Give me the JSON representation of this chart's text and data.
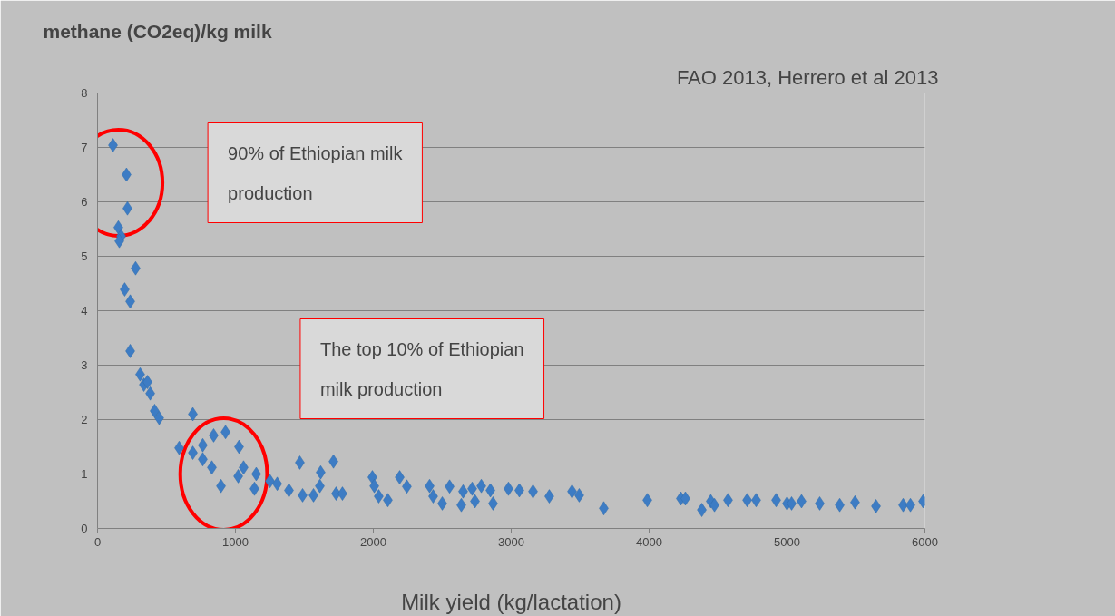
{
  "chart_data": {
    "type": "scatter",
    "title": "methane (CO2eq)/kg milk",
    "xlabel": "Milk yield (kg/lactation)",
    "annotations": [
      "FAO 2013, Herrero et al 2013",
      "90% of Ethiopian milk production",
      "The top 10% of Ethiopian milk production"
    ],
    "marker": "diamond",
    "grid": "y",
    "xlim": [
      0,
      6000
    ],
    "xticks": [
      0,
      1000,
      2000,
      3000,
      4000,
      5000,
      6000
    ],
    "ylim": [
      0,
      8
    ],
    "yticks": [
      0,
      1,
      2,
      3,
      4,
      5,
      6,
      7,
      8
    ],
    "series": [
      {
        "color": "#3d7cc4",
        "x": [
          112,
          210,
          217,
          151,
          171,
          158,
          276,
          197,
          237,
          237,
          309,
          336,
          362,
          382,
          414,
          447,
          592,
          691,
          763,
          842,
          928,
          1026,
          691,
          763,
          829,
          895,
          1020,
          1059,
          1151,
          1138,
          1250,
          1303,
          1388,
          1467,
          1487,
          1566,
          1612,
          1618,
          1711,
          1730,
          1776,
          1993,
          2007,
          2039,
          2105,
          2191,
          2243,
          2408,
          2434,
          2500,
          2553,
          2651,
          2638,
          2717,
          2737,
          2783,
          2849,
          2868,
          2980,
          3059,
          3158,
          3276,
          3441,
          3493,
          3671,
          3987,
          4230,
          4263,
          4382,
          4447,
          4474,
          4572,
          4711,
          4776,
          4921,
          5000,
          5033,
          5105,
          5237,
          5382,
          5493,
          5645,
          5842,
          5895,
          5987
        ],
        "values": [
          7.04,
          6.5,
          5.88,
          5.53,
          5.37,
          5.28,
          4.78,
          4.39,
          4.17,
          3.26,
          2.83,
          2.64,
          2.69,
          2.48,
          2.16,
          2.03,
          1.48,
          1.39,
          1.53,
          1.71,
          1.77,
          1.5,
          2.1,
          1.27,
          1.12,
          0.78,
          0.96,
          1.12,
          1.0,
          0.73,
          0.87,
          0.82,
          0.7,
          1.21,
          0.61,
          0.61,
          0.78,
          1.03,
          1.23,
          0.64,
          0.64,
          0.94,
          0.78,
          0.59,
          0.52,
          0.94,
          0.77,
          0.78,
          0.59,
          0.46,
          0.77,
          0.68,
          0.43,
          0.73,
          0.5,
          0.78,
          0.7,
          0.46,
          0.73,
          0.7,
          0.68,
          0.59,
          0.68,
          0.61,
          0.37,
          0.52,
          0.55,
          0.55,
          0.34,
          0.5,
          0.43,
          0.52,
          0.52,
          0.52,
          0.52,
          0.46,
          0.46,
          0.5,
          0.46,
          0.43,
          0.48,
          0.41,
          0.43,
          0.43,
          0.5
        ]
      }
    ]
  }
}
